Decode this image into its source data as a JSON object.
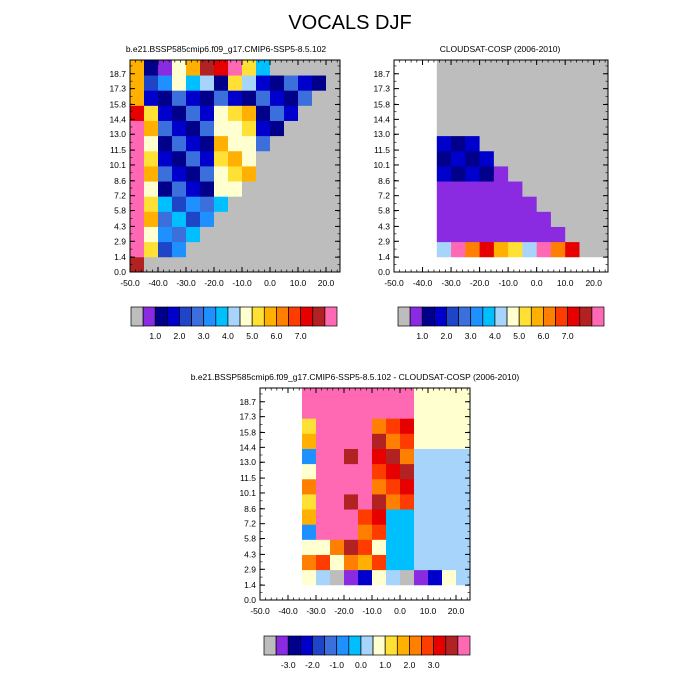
{
  "title": "VOCALS DJF",
  "chart_data": [
    {
      "type": "heatmap",
      "id": "model",
      "title": "b.e21.BSSP585cmip6.f09_g17.CMIP6-SSP5-8.5.102",
      "xlabel": "",
      "ylabel": "",
      "xlim": [
        -50,
        25
      ],
      "ylim": [
        0,
        20
      ],
      "xticks": [
        "-50.0",
        "-40.0",
        "-30.0",
        "-20.0",
        "-10.0",
        "0.0",
        "10.0",
        "20.0"
      ],
      "yticks": [
        "0.0",
        "1.4",
        "2.9",
        "4.3",
        "5.8",
        "7.2",
        "8.6",
        "10.1",
        "11.5",
        "13.0",
        "14.4",
        "15.8",
        "17.3",
        "18.7"
      ],
      "missing_color": "#bdbdbd",
      "colorbar_labels": [
        "1.0",
        "2.0",
        "3.0",
        "4.0",
        "5.0",
        "6.0",
        "7.0"
      ]
    },
    {
      "type": "heatmap",
      "id": "obs",
      "title": "CLOUDSAT-COSP (2006-2010)",
      "xlabel": "",
      "ylabel": "",
      "xlim": [
        -50,
        25
      ],
      "ylim": [
        0,
        20
      ],
      "xticks": [
        "-50.0",
        "-40.0",
        "-30.0",
        "-20.0",
        "-10.0",
        "0.0",
        "10.0",
        "20.0"
      ],
      "yticks": [
        "0.0",
        "1.4",
        "2.9",
        "4.3",
        "5.8",
        "7.2",
        "8.6",
        "10.1",
        "11.5",
        "13.0",
        "14.4",
        "15.8",
        "17.3",
        "18.7"
      ],
      "missing_color": "#bdbdbd",
      "colorbar_labels": [
        "1.0",
        "2.0",
        "3.0",
        "4.0",
        "5.0",
        "6.0",
        "7.0"
      ]
    },
    {
      "type": "heatmap",
      "id": "diff",
      "title": "b.e21.BSSP585cmip6.f09_g17.CMIP6-SSP5-8.5.102 - CLOUDSAT-COSP (2006-2010)",
      "xlabel": "",
      "ylabel": "",
      "xlim": [
        -50,
        25
      ],
      "ylim": [
        0,
        20
      ],
      "xticks": [
        "-50.0",
        "-40.0",
        "-30.0",
        "-20.0",
        "-10.0",
        "0.0",
        "10.0",
        "20.0"
      ],
      "yticks": [
        "0.0",
        "1.4",
        "2.9",
        "4.3",
        "5.8",
        "7.2",
        "8.6",
        "10.1",
        "11.5",
        "13.0",
        "14.4",
        "15.8",
        "17.3",
        "18.7"
      ],
      "missing_color": "#bdbdbd",
      "colorbar_labels": [
        "-3.0",
        "-2.0",
        "-1.0",
        "0.0",
        "1.0",
        "2.0",
        "3.0"
      ]
    }
  ],
  "colors": {
    "abs_scale": [
      "#bdbdbd",
      "#8a2be2",
      "#00008b",
      "#0000cd",
      "#1e44c8",
      "#3b6fdc",
      "#1e90ff",
      "#00bfff",
      "#a6d4fa",
      "#ffffd0",
      "#ffe135",
      "#ffb000",
      "#ff7f00",
      "#ff3c00",
      "#e60000",
      "#b22222",
      "#ff69b4"
    ],
    "diff_scale": [
      "#bdbdbd",
      "#8a2be2",
      "#00008b",
      "#0000cd",
      "#1e44c8",
      "#3b6fdc",
      "#1e90ff",
      "#00bfff",
      "#a6d4fa",
      "#ffffd0",
      "#ffe135",
      "#ffb000",
      "#ff7f00",
      "#ff3c00",
      "#e60000",
      "#b22222",
      "#ff69b4"
    ]
  }
}
